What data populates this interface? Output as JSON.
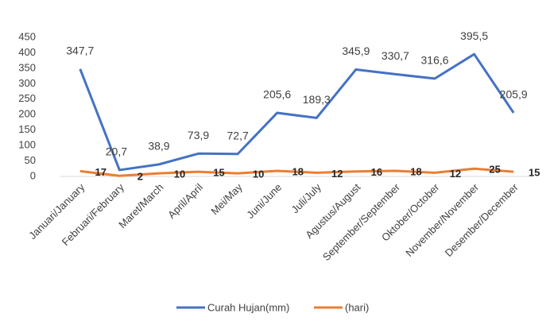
{
  "chart_data": {
    "type": "line",
    "categories": [
      "Januari/January",
      "Februari/February",
      "Maret/March",
      "April/April",
      "Mei/May",
      "Juni/June",
      "Juli/July",
      "Agustus/August",
      "September/September",
      "Oktober/October",
      "November/November",
      "Desember/December"
    ],
    "series": [
      {
        "name": "Curah Hujan(mm)",
        "color": "#4472c4",
        "values": [
          347.7,
          20.7,
          38.9,
          73.9,
          72.7,
          205.6,
          189.3,
          345.9,
          330.7,
          316.6,
          395.5,
          205.9
        ],
        "value_labels": [
          "347,7",
          "20,7",
          "38,9",
          "73,9",
          "72,7",
          "205,6",
          "189,3",
          "345,9",
          "330,7",
          "316,6",
          "395,5",
          "205,9"
        ]
      },
      {
        "name": "(hari)",
        "color": "#ed7d31",
        "values": [
          17,
          2,
          10,
          15,
          10,
          18,
          12,
          16,
          18,
          12,
          25,
          15
        ]
      }
    ],
    "ylim": [
      0,
      450
    ],
    "yticks": [
      0,
      50,
      100,
      150,
      200,
      250,
      300,
      350,
      400,
      450
    ],
    "grid": false,
    "legend": "bottom"
  }
}
